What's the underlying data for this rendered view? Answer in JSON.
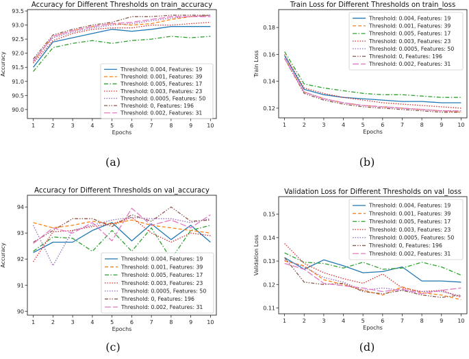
{
  "chart_data": [
    {
      "type": "line",
      "panel_label": "(a)",
      "title": "Accuracy for Different Thresholds on train_accuracy",
      "xlabel": "Epochs",
      "ylabel": "Accuracy",
      "x": [
        1,
        2,
        3,
        4,
        5,
        6,
        7,
        8,
        9,
        10
      ],
      "xlim": [
        0.7,
        10.3
      ],
      "ylim": [
        89.68,
        93.55
      ],
      "yticks": [
        90.0,
        90.5,
        91.0,
        91.5,
        92.0,
        92.5,
        93.0,
        93.5
      ],
      "yticklabels": [
        "90.0",
        "90.5",
        "91.0",
        "91.5",
        "92.0",
        "92.5",
        "93.0",
        "93.5"
      ],
      "grid": false,
      "legend_position": "lower-right",
      "series": [
        {
          "name": "Threshold: 0.004, Features: 19",
          "color": "#1f77b4",
          "dash": "solid",
          "values": [
            91.5,
            92.4,
            92.55,
            92.7,
            92.85,
            92.78,
            92.85,
            92.95,
            92.95,
            92.95
          ]
        },
        {
          "name": "Threshold: 0.001, Features: 39",
          "color": "#ff7f0e",
          "dash": "dashed",
          "values": [
            91.7,
            92.6,
            92.8,
            92.95,
            93.05,
            93.0,
            93.05,
            93.2,
            93.3,
            93.35
          ]
        },
        {
          "name": "Threshold: 0.005, Features: 17",
          "color": "#2ca02c",
          "dash": "dashdot",
          "values": [
            91.35,
            92.2,
            92.35,
            92.45,
            92.35,
            92.45,
            92.5,
            92.6,
            92.55,
            92.6
          ]
        },
        {
          "name": "Threshold: 0.003, Features: 23",
          "color": "#d62728",
          "dash": "dotted",
          "values": [
            91.65,
            92.45,
            92.7,
            92.85,
            92.9,
            92.9,
            93.0,
            93.0,
            93.05,
            93.1
          ]
        },
        {
          "name": "Threshold: 0.0005, Features: 50",
          "color": "#9467bd",
          "dash": "dotted",
          "values": [
            91.75,
            92.55,
            92.75,
            92.9,
            93.0,
            93.05,
            93.15,
            93.25,
            93.3,
            93.35
          ]
        },
        {
          "name": "Threshold: 0, Features: 196",
          "color": "#8c564b",
          "dash": "dashdotdot",
          "values": [
            91.8,
            92.65,
            92.85,
            93.0,
            93.1,
            93.3,
            93.3,
            93.35,
            93.35,
            93.35
          ]
        },
        {
          "name": "Threshold: 0.002, Features: 31",
          "color": "#e377c2",
          "dash": "longdash",
          "values": [
            91.7,
            92.6,
            92.8,
            92.95,
            93.05,
            93.1,
            93.2,
            93.3,
            93.3,
            93.3
          ]
        }
      ]
    },
    {
      "type": "line",
      "panel_label": "(b)",
      "title": "Train Loss for Different Thresholds on train_loss",
      "xlabel": "Epochs",
      "ylabel": "Train Loss",
      "x": [
        1,
        2,
        3,
        4,
        5,
        6,
        7,
        8,
        9,
        10
      ],
      "xlim": [
        0.7,
        10.3
      ],
      "ylim": [
        0.1128,
        0.1933
      ],
      "yticks": [
        0.12,
        0.14,
        0.16,
        0.18
      ],
      "yticklabels": [
        "0.12",
        "0.14",
        "0.16",
        "0.18"
      ],
      "grid": false,
      "legend_position": "top-right",
      "series": [
        {
          "name": "Threshold: 0.004, Features: 19",
          "color": "#1f77b4",
          "dash": "solid",
          "values": [
            0.159,
            0.134,
            0.13,
            0.128,
            0.127,
            0.126,
            0.125,
            0.125,
            0.124,
            0.124
          ]
        },
        {
          "name": "Threshold: 0.001, Features: 39",
          "color": "#ff7f0e",
          "dash": "dashed",
          "values": [
            0.157,
            0.132,
            0.127,
            0.124,
            0.122,
            0.121,
            0.12,
            0.119,
            0.118,
            0.117
          ]
        },
        {
          "name": "Threshold: 0.005, Features: 17",
          "color": "#2ca02c",
          "dash": "dashdot",
          "values": [
            0.162,
            0.138,
            0.135,
            0.133,
            0.131,
            0.13,
            0.13,
            0.129,
            0.128,
            0.128
          ]
        },
        {
          "name": "Threshold: 0.003, Features: 23",
          "color": "#d62728",
          "dash": "dotted",
          "values": [
            0.16,
            0.135,
            0.131,
            0.128,
            0.126,
            0.124,
            0.123,
            0.122,
            0.121,
            0.12
          ]
        },
        {
          "name": "Threshold: 0.0005, Features: 50",
          "color": "#9467bd",
          "dash": "dotted",
          "values": [
            0.157,
            0.132,
            0.127,
            0.124,
            0.122,
            0.121,
            0.12,
            0.119,
            0.118,
            0.118
          ]
        },
        {
          "name": "Threshold: 0, Features: 196",
          "color": "#8c564b",
          "dash": "dashdotdot",
          "values": [
            0.157,
            0.131,
            0.126,
            0.123,
            0.121,
            0.12,
            0.119,
            0.118,
            0.117,
            0.117
          ]
        },
        {
          "name": "Threshold: 0.002, Features: 31",
          "color": "#e377c2",
          "dash": "longdash",
          "values": [
            0.157,
            0.132,
            0.127,
            0.124,
            0.122,
            0.121,
            0.12,
            0.119,
            0.118,
            0.118
          ]
        }
      ]
    },
    {
      "type": "line",
      "panel_label": "(c)",
      "title": "Accuracy for Different Thresholds on val_accuracy",
      "xlabel": "Epochs",
      "ylabel": "Accuracy",
      "x": [
        1,
        2,
        3,
        4,
        5,
        6,
        7,
        8,
        9,
        10
      ],
      "xlim": [
        0.7,
        10.3
      ],
      "ylim": [
        89.85,
        94.45
      ],
      "yticks": [
        90,
        91,
        92,
        93,
        94
      ],
      "yticklabels": [
        "90",
        "91",
        "92",
        "93",
        "94"
      ],
      "grid": false,
      "legend_position": "lower-right",
      "series": [
        {
          "name": "Threshold: 0.004, Features: 19",
          "color": "#1f77b4",
          "dash": "solid",
          "values": [
            92.25,
            92.65,
            92.65,
            93.1,
            93.4,
            92.7,
            93.35,
            92.75,
            93.3,
            92.65
          ]
        },
        {
          "name": "Threshold: 0.001, Features: 39",
          "color": "#ff7f0e",
          "dash": "dashed",
          "values": [
            93.4,
            93.2,
            93.3,
            93.45,
            93.35,
            93.5,
            93.3,
            93.2,
            93.1,
            93.0
          ]
        },
        {
          "name": "Threshold: 0.005, Features: 17",
          "color": "#2ca02c",
          "dash": "dashdot",
          "values": [
            92.3,
            92.85,
            92.8,
            92.3,
            93.1,
            92.3,
            93.2,
            92.0,
            93.1,
            93.3
          ]
        },
        {
          "name": "Threshold: 0.003, Features: 23",
          "color": "#d62728",
          "dash": "dotted",
          "values": [
            91.9,
            93.05,
            93.1,
            93.25,
            93.35,
            93.6,
            93.0,
            92.65,
            93.0,
            92.9
          ]
        },
        {
          "name": "Threshold: 0.0005, Features: 50",
          "color": "#9467bd",
          "dash": "dotted",
          "values": [
            93.3,
            91.75,
            93.1,
            93.3,
            93.5,
            93.6,
            93.55,
            93.55,
            93.4,
            93.55
          ]
        },
        {
          "name": "Threshold: 0, Features: 196",
          "color": "#8c564b",
          "dash": "dashdotdot",
          "values": [
            92.65,
            93.1,
            93.55,
            93.55,
            93.25,
            93.7,
            93.45,
            94.0,
            93.45,
            93.5
          ]
        },
        {
          "name": "Threshold: 0.002, Features: 31",
          "color": "#e377c2",
          "dash": "longdash",
          "values": [
            92.6,
            93.2,
            93.0,
            93.4,
            92.7,
            93.95,
            93.3,
            93.5,
            93.2,
            93.7
          ]
        }
      ]
    },
    {
      "type": "line",
      "panel_label": "(d)",
      "title": "Validation Loss for Different Thresholds on val_loss",
      "xlabel": "Epochs",
      "ylabel": "Validation Loss",
      "x": [
        1,
        2,
        3,
        4,
        5,
        6,
        7,
        8,
        9,
        10
      ],
      "xlim": [
        0.7,
        10.3
      ],
      "ylim": [
        0.1075,
        0.1575
      ],
      "yticks": [
        0.11,
        0.12,
        0.13,
        0.14,
        0.15
      ],
      "yticklabels": [
        "0.11",
        "0.12",
        "0.13",
        "0.14",
        "0.15"
      ],
      "grid": false,
      "legend_position": "top-right",
      "series": [
        {
          "name": "Threshold: 0.004, Features: 19",
          "color": "#1f77b4",
          "dash": "solid",
          "values": [
            0.1315,
            0.1265,
            0.1305,
            0.128,
            0.125,
            0.1255,
            0.1275,
            0.1215,
            0.1215,
            0.121
          ]
        },
        {
          "name": "Threshold: 0.001, Features: 39",
          "color": "#ff7f0e",
          "dash": "dashed",
          "values": [
            0.13,
            0.128,
            0.122,
            0.12,
            0.1175,
            0.1155,
            0.119,
            0.1165,
            0.1155,
            0.1135
          ]
        },
        {
          "name": "Threshold: 0.005, Features: 17",
          "color": "#2ca02c",
          "dash": "dashdot",
          "values": [
            0.1335,
            0.1295,
            0.129,
            0.127,
            0.1295,
            0.1265,
            0.127,
            0.1295,
            0.1275,
            0.124
          ]
        },
        {
          "name": "Threshold: 0.003, Features: 23",
          "color": "#d62728",
          "dash": "dotted",
          "values": [
            0.1375,
            0.129,
            0.125,
            0.1225,
            0.1205,
            0.1245,
            0.1185,
            0.117,
            0.1175,
            0.1145
          ]
        },
        {
          "name": "Threshold: 0.0005, Features: 50",
          "color": "#9467bd",
          "dash": "dotted",
          "values": [
            0.1305,
            0.1275,
            0.123,
            0.121,
            0.1175,
            0.1185,
            0.1175,
            0.117,
            0.117,
            0.115
          ]
        },
        {
          "name": "Threshold: 0, Features: 196",
          "color": "#8c564b",
          "dash": "dashdotdot",
          "values": [
            0.1315,
            0.121,
            0.12,
            0.1205,
            0.117,
            0.116,
            0.1175,
            0.1155,
            0.1145,
            0.1155
          ]
        },
        {
          "name": "Threshold: 0.002, Features: 31",
          "color": "#e377c2",
          "dash": "longdash",
          "values": [
            0.129,
            0.1265,
            0.1205,
            0.1195,
            0.1185,
            0.117,
            0.118,
            0.116,
            0.1175,
            0.1185
          ]
        }
      ]
    }
  ]
}
